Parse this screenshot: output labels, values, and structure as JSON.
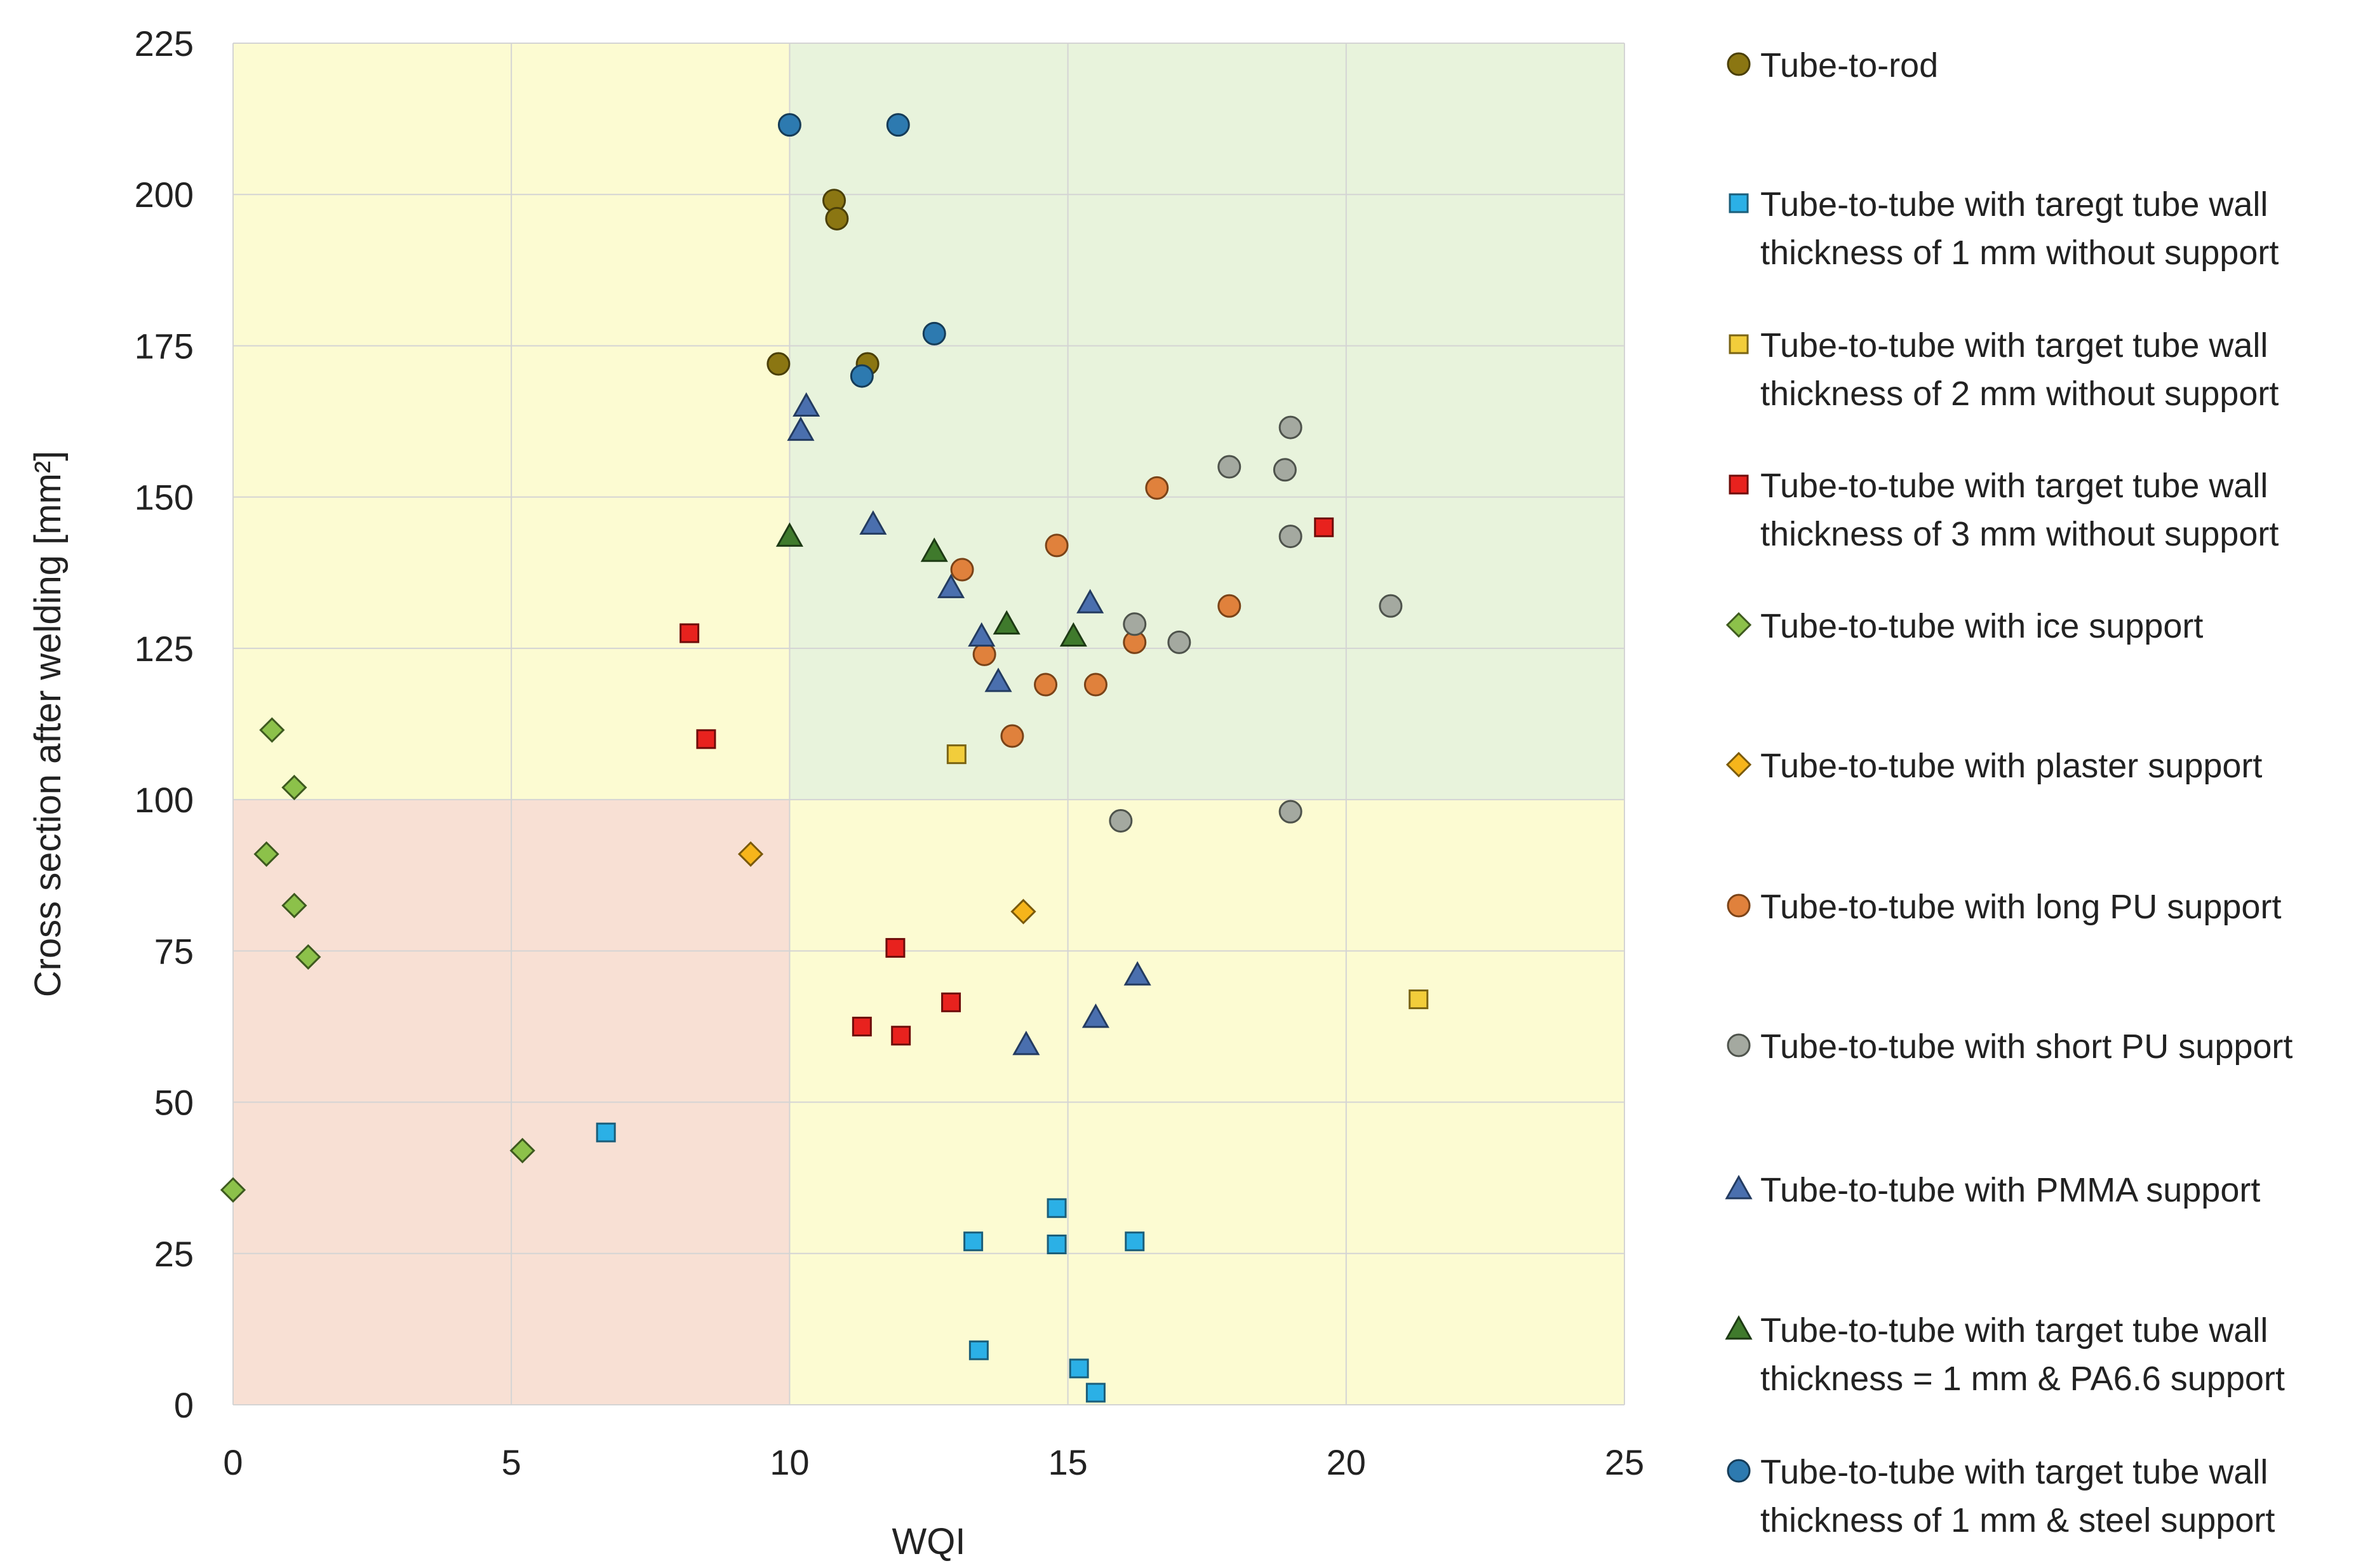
{
  "chart_data": {
    "type": "scatter",
    "title": "",
    "xlabel": "WQI",
    "ylabel": "Cross section after welding  [mm²]",
    "xlim": [
      0,
      25
    ],
    "ylim": [
      0,
      225
    ],
    "xticks": [
      "0",
      "5",
      "10",
      "15",
      "20",
      "25"
    ],
    "yticks": [
      "0",
      "25",
      "50",
      "75",
      "100",
      "125",
      "150",
      "175",
      "200",
      "225"
    ],
    "grid": true,
    "legend_position": "right",
    "regions": [
      {
        "name": "low-wqi-high-cross-section",
        "x": [
          0,
          10
        ],
        "y": [
          100,
          225
        ],
        "color": "#fcfbd2"
      },
      {
        "name": "high-wqi-high-cross-section",
        "x": [
          10,
          25
        ],
        "y": [
          100,
          225
        ],
        "color": "#e8f3dc"
      },
      {
        "name": "low-wqi-low-cross-section",
        "x": [
          0,
          10
        ],
        "y": [
          0,
          100
        ],
        "color": "#f8e0d4"
      },
      {
        "name": "high-wqi-low-cross-section",
        "x": [
          10,
          25
        ],
        "y": [
          0,
          100
        ],
        "color": "#fcfbd2"
      }
    ],
    "series": [
      {
        "name": "Tube-to-rod",
        "legend_lines": [
          "Tube-to-rod"
        ],
        "marker": "circle",
        "color": "#8b7612",
        "stroke": "#4a3f08",
        "points": [
          [
            10.8,
            199
          ],
          [
            10.85,
            196
          ],
          [
            9.8,
            172
          ],
          [
            11.4,
            172
          ]
        ]
      },
      {
        "name": "Tube-to-tube with taregt tube wall thickness of 1 mm without support",
        "legend_lines": [
          "Tube-to-tube with taregt tube wall",
          "thickness of 1 mm without support"
        ],
        "marker": "square",
        "color": "#2bb0e6",
        "stroke": "#1b5e7a",
        "legend_color": "#2bb0e6",
        "points": [
          [
            6.7,
            45
          ],
          [
            14.8,
            32.5
          ],
          [
            13.3,
            27
          ],
          [
            14.8,
            26.5
          ],
          [
            16.2,
            27
          ],
          [
            13.4,
            9
          ],
          [
            15.2,
            6
          ],
          [
            15.5,
            2
          ]
        ]
      },
      {
        "name": "Tube-to-tube with target tube wall thickness of 2 mm without support",
        "legend_lines": [
          "Tube-to-tube with target tube wall",
          "thickness of 2 mm without support"
        ],
        "marker": "square",
        "color": "#f2cd3b",
        "stroke": "#7a6414",
        "points": [
          [
            13.0,
            107.5
          ],
          [
            21.3,
            67
          ]
        ]
      },
      {
        "name": "Tube-to-tube with target tube wall thickness of 3 mm without support",
        "legend_lines": [
          "Tube-to-tube with target tube wall",
          "thickness of 3 mm without support"
        ],
        "marker": "square",
        "color": "#e8221e",
        "stroke": "#6e0c0a",
        "points": [
          [
            8.2,
            127.5
          ],
          [
            8.5,
            110
          ],
          [
            19.6,
            145
          ],
          [
            11.9,
            75.5
          ],
          [
            12.9,
            66.5
          ],
          [
            11.3,
            62.5
          ],
          [
            12.0,
            61
          ]
        ]
      },
      {
        "name": "Tube-to-tube with ice support",
        "legend_lines": [
          "Tube-to-tube with ice support"
        ],
        "marker": "diamond",
        "color": "#8cc14a",
        "stroke": "#3e5a1f",
        "points": [
          [
            0.7,
            111.5
          ],
          [
            1.1,
            102
          ],
          [
            0.6,
            91
          ],
          [
            1.1,
            82.5
          ],
          [
            1.35,
            74
          ],
          [
            5.2,
            42
          ],
          [
            0,
            35.5
          ]
        ]
      },
      {
        "name": "Tube-to-tube with plaster support",
        "legend_lines": [
          "Tube-to-tube with plaster support"
        ],
        "marker": "diamond",
        "color": "#f6b51b",
        "stroke": "#7a5a0c",
        "points": [
          [
            9.3,
            91
          ],
          [
            14.2,
            81.5
          ]
        ]
      },
      {
        "name": "Tube-to-tube with long PU support",
        "legend_lines": [
          "Tube-to-tube with long PU support"
        ],
        "marker": "circle",
        "color": "#e0813c",
        "stroke": "#7a4318",
        "points": [
          [
            16.6,
            151.5
          ],
          [
            14.8,
            142
          ],
          [
            13.1,
            138
          ],
          [
            17.9,
            132
          ],
          [
            16.2,
            126
          ],
          [
            13.5,
            124
          ],
          [
            14.6,
            119
          ],
          [
            15.5,
            119
          ],
          [
            14.0,
            110.5
          ]
        ]
      },
      {
        "name": "Tube-to-tube with short PU support",
        "legend_lines": [
          "Tube-to-tube with short PU support"
        ],
        "marker": "circle",
        "color": "#a4a9a0",
        "stroke": "#4e534c",
        "points": [
          [
            19.0,
            161.5
          ],
          [
            17.9,
            155
          ],
          [
            18.9,
            154.5
          ],
          [
            19.0,
            143.5
          ],
          [
            20.8,
            132
          ],
          [
            16.2,
            129
          ],
          [
            17.0,
            126
          ],
          [
            19.0,
            98
          ],
          [
            15.95,
            96.5
          ]
        ]
      },
      {
        "name": "Tube-to-tube with PMMA support",
        "legend_lines": [
          "Tube-to-tube with PMMA support"
        ],
        "marker": "triangle",
        "color": "#4a6fae",
        "stroke": "#233b60",
        "points": [
          [
            10.3,
            165
          ],
          [
            10.2,
            161
          ],
          [
            11.5,
            145.5
          ],
          [
            12.9,
            135
          ],
          [
            15.4,
            132.5
          ],
          [
            13.45,
            127
          ],
          [
            13.75,
            119.5
          ],
          [
            16.25,
            71
          ],
          [
            15.5,
            64
          ],
          [
            14.25,
            59.5
          ]
        ]
      },
      {
        "name": "Tube-to-tube with target tube wall thickness = 1 mm & PA6.6 support",
        "legend_lines": [
          "Tube-to-tube with target tube wall",
          "thickness = 1 mm & PA6.6 support"
        ],
        "marker": "triangle",
        "color": "#3f7a2c",
        "stroke": "#1d3a14",
        "points": [
          [
            10.0,
            143.5
          ],
          [
            12.6,
            141
          ],
          [
            13.9,
            129
          ],
          [
            15.1,
            127
          ]
        ]
      },
      {
        "name": "Tube-to-tube with target tube wall thickness of 1 mm & steel support",
        "legend_lines": [
          "Tube-to-tube with target tube wall",
          "thickness of 1 mm & steel support"
        ],
        "marker": "circle",
        "color": "#2d7ab0",
        "stroke": "#163c58",
        "points": [
          [
            10.0,
            211.5
          ],
          [
            11.95,
            211.5
          ],
          [
            12.6,
            177
          ],
          [
            11.3,
            170
          ]
        ]
      }
    ]
  }
}
